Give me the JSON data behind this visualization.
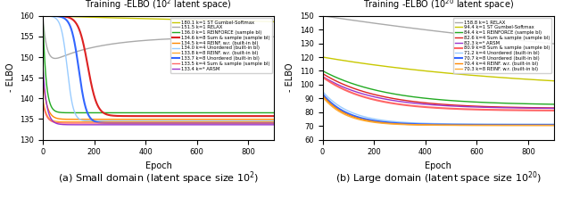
{
  "left_title": "Training -ELBO (10$^2$ latent space)",
  "right_title": "Training -ELBO (10$^{20}$ latent space)",
  "left_xlabel": "Epoch",
  "right_xlabel": "Epoch",
  "left_ylabel": "- ELBO",
  "right_ylabel": "- ELBO",
  "left_ylim": [
    130,
    160
  ],
  "right_ylim": [
    60,
    150
  ],
  "xlim": [
    0,
    900
  ],
  "caption_left": "(a) Small domain (latent space size 10$^2$)",
  "caption_right": "(b) Large domain (latent space size 10$^{20}$)",
  "left_legend": [
    {
      "label": "180.1 k=1 ST Gumbel-Softmax",
      "color": "#c8c800",
      "lw": 1.0
    },
    {
      "label": "151.5 k=1 RELAX",
      "color": "#aaaaaa",
      "lw": 1.0
    },
    {
      "label": "136.0 k=1 REINFORCE (sample bl)",
      "color": "#22aa22",
      "lw": 1.0
    },
    {
      "label": "134.6 k=8 Sum & sample (sample bl)",
      "color": "#dd2222",
      "lw": 1.5
    },
    {
      "label": "134.5 k=4 REINF. w.r. (built-in bl)",
      "color": "#ff8800",
      "lw": 1.0
    },
    {
      "label": "134.0 k=4 Unordered (built-in bl)",
      "color": "#99ccff",
      "lw": 1.0
    },
    {
      "label": "133.8 k=8 REINF. w.r. (built-in bl)",
      "color": "#ffaa33",
      "lw": 1.0
    },
    {
      "label": "133.7 k=8 Unordered (built-in bl)",
      "color": "#3366ff",
      "lw": 1.5
    },
    {
      "label": "133.5 k=4 Sum & sample (sample bl)",
      "color": "#ff6666",
      "lw": 1.0
    },
    {
      "label": "133.4 k=* ARSM",
      "color": "#9933cc",
      "lw": 1.0
    }
  ],
  "right_legend": [
    {
      "label": "158.8 k=1 RELAX",
      "color": "#aaaaaa",
      "lw": 1.0
    },
    {
      "label": "94.4 k=1 ST Gumbel-Softmax",
      "color": "#c8c800",
      "lw": 1.0
    },
    {
      "label": "84.4 k=1 REINFORCE (sample bl)",
      "color": "#22aa22",
      "lw": 1.0
    },
    {
      "label": "82.6 k=4 Sum & sample (sample bl)",
      "color": "#dd2222",
      "lw": 1.0
    },
    {
      "label": "82.3 k=* ARSM",
      "color": "#9933cc",
      "lw": 1.0
    },
    {
      "label": "80.9 k=8 Sum & sample (sample bl)",
      "color": "#ff6666",
      "lw": 1.5
    },
    {
      "label": "71.2 k=4 Unordered (built-in bl)",
      "color": "#99ccff",
      "lw": 1.0
    },
    {
      "label": "70.7 k=8 Unordered (built-in bl)",
      "color": "#3366ff",
      "lw": 1.5
    },
    {
      "label": "70.4 k=4 REINF. w.r. (built-in bl)",
      "color": "#ff8800",
      "lw": 1.0
    },
    {
      "label": "70.3 k=8 REINF. w.r. (built-in bl)",
      "color": "#ffaa33",
      "lw": 1.0
    }
  ]
}
